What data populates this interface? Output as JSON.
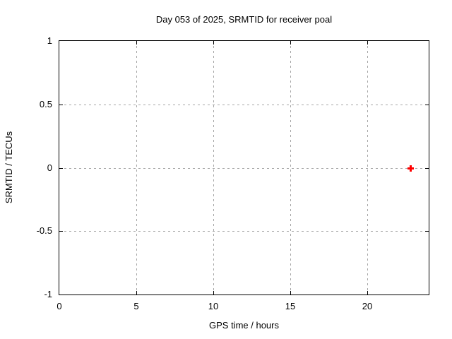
{
  "chart_data": {
    "type": "scatter",
    "title": "Day 053 of 2025, SRMTID for receiver poal",
    "xlabel": "GPS time / hours",
    "ylabel": "SRMTID / TECUs",
    "xlim": [
      0,
      24
    ],
    "ylim": [
      -1,
      1
    ],
    "x_ticks": [
      0,
      5,
      10,
      15,
      20
    ],
    "y_ticks": [
      1,
      0.5,
      0,
      -0.5,
      -1
    ],
    "grid": true,
    "grid_style": "dashed",
    "legend": false,
    "series": [
      {
        "name": "SRMTID",
        "marker": "plus",
        "color": "#ff0000",
        "points": [
          {
            "x": 22.8,
            "y": 0.0
          }
        ]
      }
    ]
  },
  "colors": {
    "background": "#ffffff",
    "frame": "#000000",
    "grid": "#a6a6a6",
    "text": "#000000",
    "marker": "#ff0000"
  }
}
